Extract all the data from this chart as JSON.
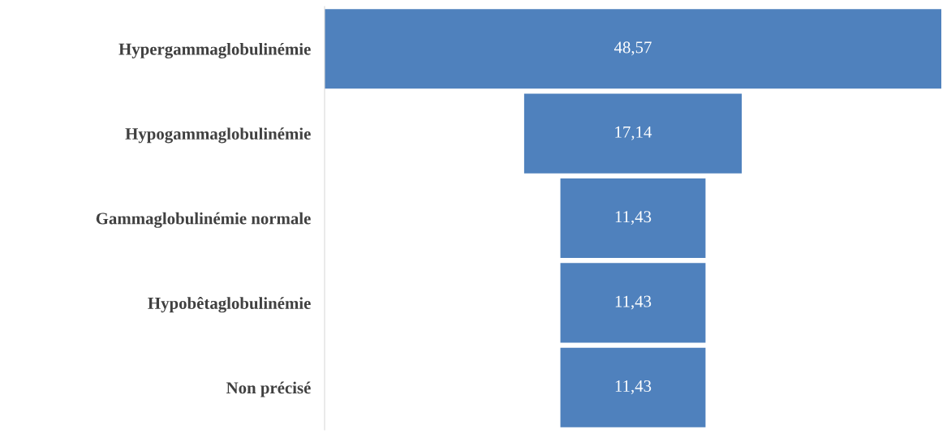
{
  "chart_data": {
    "type": "other",
    "categories": [
      "Hypergammaglobulinémie",
      "Hypogammaglobulinémie",
      "Gammaglobulinémie normale",
      "Hypobêtaglobulinémie",
      "Non précisé"
    ],
    "values": [
      48.57,
      17.14,
      11.43,
      11.43,
      11.43
    ],
    "value_labels": [
      "48,57",
      "17,14",
      "11,43",
      "11,43",
      "11,43"
    ],
    "color": "#4f81bd"
  }
}
